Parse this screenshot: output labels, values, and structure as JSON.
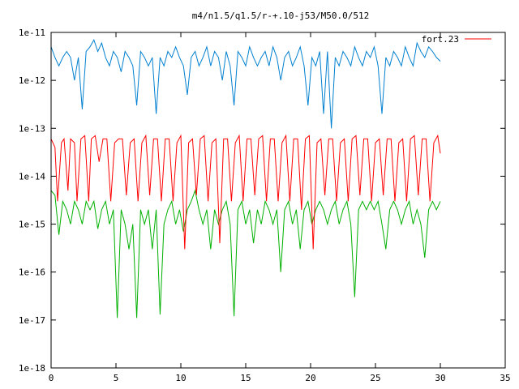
{
  "chart_data": {
    "type": "line",
    "title": "m4/n1.5/q1.5/r-+.10-j53/M50.0/512",
    "xlabel": "",
    "ylabel": "",
    "xlim": [
      0,
      35
    ],
    "ylim": [
      1e-18,
      1e-11
    ],
    "yscale": "log",
    "grid": false,
    "legend": {
      "position": "top-right",
      "entries": [
        "fort.23"
      ]
    },
    "x_ticks": [
      0,
      5,
      10,
      15,
      20,
      25,
      30,
      35
    ],
    "x_tick_labels": [
      "0",
      "5",
      "10",
      "15",
      "20",
      "25",
      "30",
      "35"
    ],
    "y_ticks": [
      1e-18,
      1e-17,
      1e-16,
      1e-15,
      1e-14,
      1e-13,
      1e-12,
      1e-11
    ],
    "y_tick_labels": [
      "1e-18",
      "1e-17",
      "1e-16",
      "1e-15",
      "1e-14",
      "1e-13",
      "1e-12",
      "1e-11"
    ],
    "series": [
      {
        "name": "fort.23",
        "color": "#ff0000",
        "x": [
          0,
          0.3,
          0.5,
          0.8,
          1.0,
          1.3,
          1.5,
          1.8,
          2.0,
          2.3,
          2.6,
          2.9,
          3.1,
          3.4,
          3.7,
          4.0,
          4.3,
          4.6,
          4.9,
          5.2,
          5.5,
          5.8,
          6.1,
          6.4,
          6.7,
          7.0,
          7.3,
          7.6,
          7.9,
          8.2,
          8.5,
          8.8,
          9.1,
          9.4,
          9.7,
          10.0,
          10.3,
          10.6,
          10.9,
          11.2,
          11.5,
          11.8,
          12.1,
          12.4,
          12.7,
          13.0,
          13.3,
          13.6,
          13.9,
          14.2,
          14.5,
          14.8,
          15.1,
          15.4,
          15.7,
          16.0,
          16.3,
          16.6,
          16.9,
          17.2,
          17.5,
          17.8,
          18.1,
          18.4,
          18.7,
          19.0,
          19.3,
          19.6,
          19.9,
          20.2,
          20.5,
          20.8,
          21.1,
          21.4,
          21.7,
          22.0,
          22.3,
          22.6,
          22.9,
          23.2,
          23.5,
          23.8,
          24.1,
          24.4,
          24.7,
          25.0,
          25.3,
          25.6,
          25.9,
          26.2,
          26.5,
          26.8,
          27.1,
          27.4,
          27.7,
          28.0,
          28.3,
          28.6,
          28.9,
          29.2,
          29.5,
          29.8,
          30.0
        ],
        "y": [
          6e-14,
          4e-14,
          3e-15,
          5e-14,
          6e-14,
          5e-15,
          6e-14,
          5e-14,
          3e-15,
          6e-14,
          7e-14,
          3e-15,
          6e-14,
          7e-14,
          2e-14,
          6e-14,
          6e-14,
          3e-15,
          5e-14,
          6e-14,
          6e-14,
          4e-15,
          5e-14,
          6e-14,
          3e-15,
          5e-14,
          7e-14,
          4e-15,
          6e-14,
          6e-14,
          3e-15,
          6e-14,
          6e-14,
          3e-15,
          5e-14,
          7e-14,
          3e-16,
          5e-14,
          6e-14,
          4e-15,
          6e-14,
          7e-14,
          3e-15,
          5e-14,
          6e-14,
          4e-16,
          6e-14,
          6e-14,
          3e-15,
          5e-14,
          7e-14,
          3e-15,
          6e-14,
          6e-14,
          4e-15,
          6e-14,
          7e-14,
          3e-15,
          6e-14,
          6e-14,
          3e-15,
          5e-14,
          7e-14,
          3e-15,
          6e-14,
          6e-14,
          2e-15,
          6e-14,
          7e-14,
          3e-16,
          5e-14,
          6e-14,
          4e-15,
          6e-14,
          6e-14,
          3e-15,
          5e-14,
          6e-14,
          3e-15,
          6e-14,
          7e-14,
          4e-15,
          6e-14,
          6e-14,
          3e-15,
          5e-14,
          6e-14,
          4e-15,
          6e-14,
          6e-14,
          3e-15,
          5e-14,
          6e-14,
          3e-15,
          6e-14,
          7e-14,
          4e-15,
          6e-14,
          6e-14,
          3e-15,
          5e-14,
          7e-14,
          3e-14
        ]
      },
      {
        "color": "#0080d0",
        "x": [
          0,
          0.3,
          0.6,
          0.9,
          1.2,
          1.5,
          1.8,
          2.1,
          2.4,
          2.7,
          3.0,
          3.3,
          3.6,
          3.9,
          4.2,
          4.5,
          4.8,
          5.1,
          5.4,
          5.7,
          6.0,
          6.3,
          6.6,
          6.9,
          7.2,
          7.5,
          7.8,
          8.1,
          8.4,
          8.7,
          9.0,
          9.3,
          9.6,
          9.9,
          10.2,
          10.5,
          10.8,
          11.1,
          11.4,
          11.7,
          12.0,
          12.3,
          12.6,
          12.9,
          13.2,
          13.5,
          13.8,
          14.1,
          14.4,
          14.7,
          15.0,
          15.3,
          15.6,
          15.9,
          16.2,
          16.5,
          16.8,
          17.1,
          17.4,
          17.7,
          18.0,
          18.3,
          18.6,
          18.9,
          19.2,
          19.5,
          19.8,
          20.1,
          20.4,
          20.7,
          21.0,
          21.3,
          21.6,
          21.9,
          22.2,
          22.5,
          22.8,
          23.1,
          23.4,
          23.7,
          24.0,
          24.3,
          24.6,
          24.9,
          25.2,
          25.5,
          25.8,
          26.1,
          26.4,
          26.7,
          27.0,
          27.3,
          27.6,
          27.9,
          28.2,
          28.5,
          28.8,
          29.1,
          29.4,
          29.7,
          30.0
        ],
        "y": [
          5e-12,
          3e-12,
          2e-12,
          3e-12,
          4e-12,
          3e-12,
          1e-12,
          3e-12,
          2.5e-13,
          4e-12,
          5e-12,
          7e-12,
          4e-12,
          6e-12,
          3e-12,
          2e-12,
          4e-12,
          3e-12,
          1.5e-12,
          4e-12,
          3e-12,
          2e-12,
          3e-13,
          4e-12,
          3e-12,
          2e-12,
          3e-12,
          2e-13,
          3e-12,
          2e-12,
          4e-12,
          3e-12,
          5e-12,
          3e-12,
          2e-12,
          5e-13,
          3e-12,
          4e-12,
          2e-12,
          3e-12,
          5e-12,
          2e-12,
          4e-12,
          3e-12,
          1e-12,
          4e-12,
          2e-12,
          3e-13,
          4e-12,
          3e-12,
          2e-12,
          5e-12,
          3e-12,
          2e-12,
          3e-12,
          4e-12,
          2e-12,
          5e-12,
          3e-12,
          1e-12,
          3e-12,
          4e-12,
          2e-12,
          3e-12,
          5e-12,
          2e-12,
          3e-13,
          3e-12,
          2e-12,
          4e-12,
          2e-13,
          4e-12,
          1e-13,
          3e-12,
          2e-12,
          4e-12,
          3e-12,
          2e-12,
          5e-12,
          3e-12,
          2e-12,
          4e-12,
          3e-12,
          5e-12,
          2e-12,
          2e-13,
          3e-12,
          2e-12,
          4e-12,
          3e-12,
          2e-12,
          5e-12,
          3e-12,
          2e-12,
          6e-12,
          4e-12,
          3e-12,
          5e-12,
          4e-12,
          3e-12,
          2.5e-12
        ]
      },
      {
        "color": "#00b000",
        "x": [
          0,
          0.3,
          0.6,
          0.9,
          1.2,
          1.5,
          1.8,
          2.1,
          2.4,
          2.7,
          3.0,
          3.3,
          3.6,
          3.9,
          4.2,
          4.5,
          4.8,
          5.1,
          5.4,
          5.7,
          6.0,
          6.3,
          6.6,
          6.9,
          7.2,
          7.5,
          7.8,
          8.1,
          8.4,
          8.7,
          9.0,
          9.3,
          9.6,
          9.9,
          10.2,
          10.5,
          10.8,
          11.1,
          11.4,
          11.7,
          12.0,
          12.3,
          12.6,
          12.9,
          13.2,
          13.5,
          13.8,
          14.1,
          14.4,
          14.7,
          15.0,
          15.3,
          15.6,
          15.9,
          16.2,
          16.5,
          16.8,
          17.1,
          17.4,
          17.7,
          18.0,
          18.3,
          18.6,
          18.9,
          19.2,
          19.5,
          19.8,
          20.1,
          20.4,
          20.7,
          21.0,
          21.3,
          21.6,
          21.9,
          22.2,
          22.5,
          22.8,
          23.1,
          23.4,
          23.7,
          24.0,
          24.3,
          24.6,
          24.9,
          25.2,
          25.5,
          25.8,
          26.1,
          26.4,
          26.7,
          27.0,
          27.3,
          27.6,
          27.9,
          28.2,
          28.5,
          28.8,
          29.1,
          29.4,
          29.7,
          30.0
        ],
        "y": [
          5e-15,
          4e-15,
          6e-16,
          3e-15,
          2e-15,
          1e-15,
          3e-15,
          2e-15,
          1e-15,
          3e-15,
          2e-15,
          3e-15,
          8e-16,
          2e-15,
          3e-15,
          1e-15,
          2e-15,
          1.1e-17,
          2e-15,
          1e-15,
          3e-16,
          1e-15,
          1.1e-17,
          2e-15,
          1e-15,
          2e-15,
          3e-16,
          2e-15,
          1.3e-17,
          1e-15,
          2e-15,
          3e-15,
          1e-15,
          2e-15,
          7e-16,
          2e-15,
          3e-15,
          5e-15,
          2e-15,
          1e-15,
          2e-15,
          3e-16,
          2e-15,
          1e-15,
          2e-15,
          3e-15,
          1e-15,
          1.2e-17,
          2e-15,
          3e-15,
          1e-15,
          2e-15,
          4e-16,
          2e-15,
          1e-15,
          3e-15,
          2e-15,
          1e-15,
          2e-15,
          1e-16,
          2e-15,
          3e-15,
          1e-15,
          2e-15,
          3e-16,
          2e-15,
          3e-15,
          1e-15,
          2e-15,
          3e-15,
          2e-15,
          1e-15,
          2e-15,
          3e-15,
          1e-15,
          2e-15,
          3e-15,
          1e-15,
          3e-17,
          2e-15,
          3e-15,
          2e-15,
          3e-15,
          2e-15,
          3e-15,
          1e-15,
          3e-16,
          2e-15,
          3e-15,
          2e-15,
          1e-15,
          2e-15,
          3e-15,
          1e-15,
          2e-15,
          1e-15,
          2e-16,
          2e-15,
          3e-15,
          2e-15,
          3e-15
        ]
      }
    ]
  }
}
